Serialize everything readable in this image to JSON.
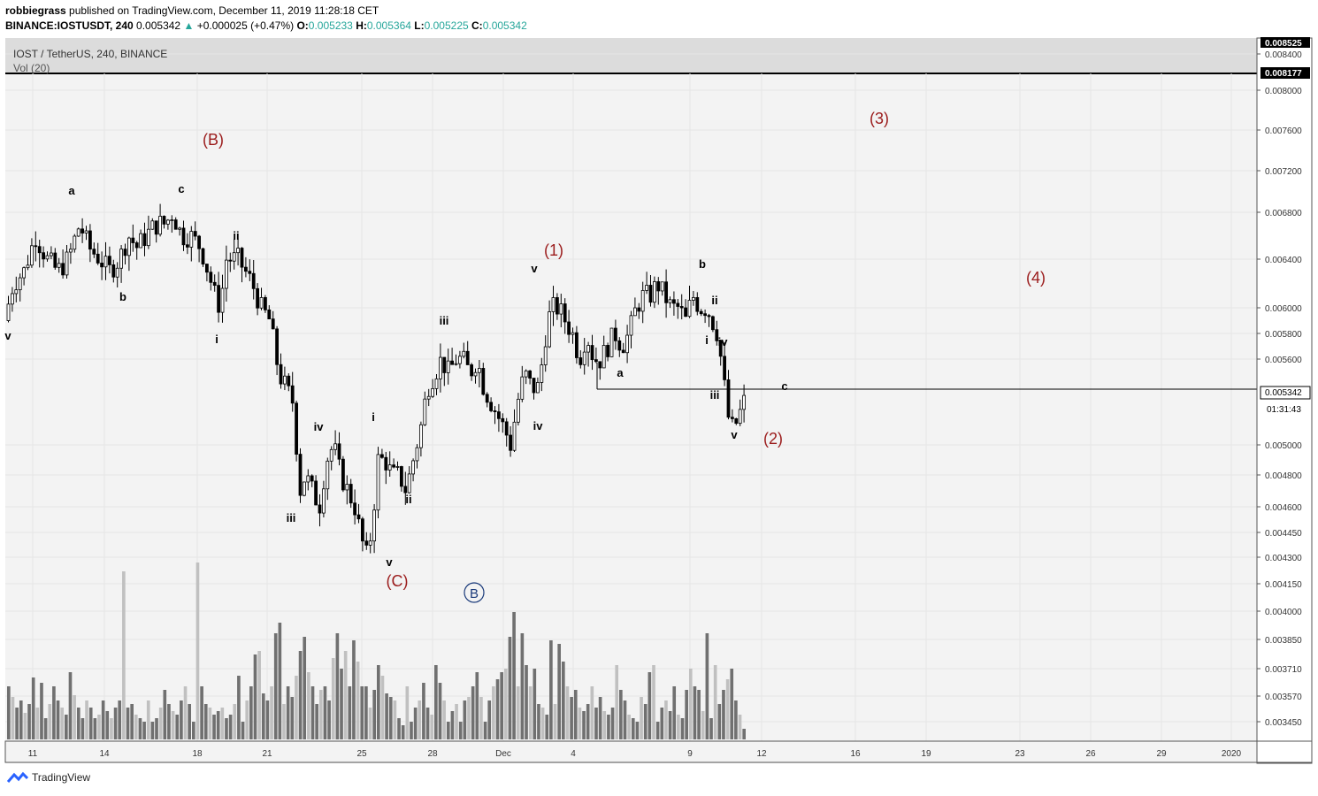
{
  "header": {
    "author": "robbiegrass",
    "published_text": "published on TradingView.com, December 11, 2019 11:28:18 CET",
    "symbol": "BINANCE:IOSTUSDT, 240",
    "last": "0.005342",
    "change_arrow": "▲",
    "change": "+0.000025 (+0.47%)",
    "o_label": "O:",
    "o_val": "0.005233",
    "h_label": "H:",
    "h_val": "0.005364",
    "l_label": "L:",
    "l_val": "0.005225",
    "c_label": "C:",
    "c_val": "0.005342"
  },
  "legend": {
    "title": "IOST / TetherUS, 240, BINANCE",
    "vol": "Vol (20)"
  },
  "price_axis": {
    "ticks": [
      "0.008400",
      "0.008000",
      "0.007600",
      "0.007200",
      "0.006800",
      "0.006400",
      "0.006000",
      "0.005800",
      "0.005600",
      "0.005000",
      "0.004800",
      "0.004600",
      "0.004450",
      "0.004300",
      "0.004150",
      "0.004000",
      "0.003850",
      "0.003710",
      "0.003570",
      "0.003450"
    ],
    "badge_top": "0.008525",
    "badge_second": "0.008177",
    "badge_last": "0.005342",
    "countdown": "01:31:43"
  },
  "time_axis": {
    "ticks": [
      "11",
      "14",
      "18",
      "21",
      "25",
      "28",
      "Dec",
      "4",
      "9",
      "12",
      "16",
      "19",
      "23",
      "26",
      "29",
      "2020"
    ]
  },
  "footer": {
    "brand": "TradingView"
  },
  "colors": {
    "wave_major": "#9b1c1c",
    "wave_minor": "#000000",
    "circle_B": "#1a3a7a",
    "volume_dark": "#707070",
    "volume_light": "#c0c0c0",
    "candle": "#000000",
    "plot_bg": "#f3f3f3",
    "band_bg": "#dcdcdc"
  },
  "annotations": {
    "major": [
      {
        "label": "(B)"
      },
      {
        "label": "(C)"
      },
      {
        "label": "(1)"
      },
      {
        "label": "(2)"
      },
      {
        "label": "(3)"
      },
      {
        "label": "(4)"
      }
    ],
    "circle": {
      "label": "B"
    },
    "minor": [
      {
        "label": "a"
      },
      {
        "label": "c"
      },
      {
        "label": "b"
      },
      {
        "label": "ii"
      },
      {
        "label": "i"
      },
      {
        "label": "iv"
      },
      {
        "label": "iii"
      },
      {
        "label": "i"
      },
      {
        "label": "ii"
      },
      {
        "label": "v"
      },
      {
        "label": "iii"
      },
      {
        "label": "v"
      },
      {
        "label": "iv"
      },
      {
        "label": "a"
      },
      {
        "label": "b"
      },
      {
        "label": "ii"
      },
      {
        "label": "i"
      },
      {
        "label": "iv"
      },
      {
        "label": "iii"
      },
      {
        "label": "v"
      },
      {
        "label": "c"
      },
      {
        "label": "v"
      }
    ]
  },
  "chart_data": {
    "type": "candlestick",
    "title": "IOST / TetherUS, 240, BINANCE",
    "x_range": [
      "Nov 10 2019",
      "Jan 1 2020"
    ],
    "y_range": [
      0.00335,
      0.0085
    ],
    "y_scale": "log",
    "grid": true,
    "horizontal_level": 0.005342,
    "price_path": [
      [
        0,
        0.0059
      ],
      [
        10,
        0.0062
      ],
      [
        22,
        0.0063
      ],
      [
        35,
        0.0066
      ],
      [
        48,
        0.0064
      ],
      [
        60,
        0.0063
      ],
      [
        72,
        0.0064
      ],
      [
        85,
        0.0067
      ],
      [
        95,
        0.0065
      ],
      [
        108,
        0.0064
      ],
      [
        118,
        0.0063
      ],
      [
        130,
        0.0064
      ],
      [
        140,
        0.0066
      ],
      [
        150,
        0.0065
      ],
      [
        160,
        0.0066
      ],
      [
        172,
        0.0067
      ],
      [
        182,
        0.0067
      ],
      [
        190,
        0.0068
      ],
      [
        200,
        0.0066
      ],
      [
        210,
        0.0066
      ],
      [
        222,
        0.0065
      ],
      [
        230,
        0.0063
      ],
      [
        238,
        0.0061
      ],
      [
        244,
        0.006
      ],
      [
        250,
        0.0064
      ],
      [
        256,
        0.0064
      ],
      [
        264,
        0.0064
      ],
      [
        272,
        0.0063
      ],
      [
        280,
        0.0062
      ],
      [
        290,
        0.006
      ],
      [
        300,
        0.0059
      ],
      [
        310,
        0.0055
      ],
      [
        318,
        0.0054
      ],
      [
        326,
        0.0053
      ],
      [
        334,
        0.0047
      ],
      [
        340,
        0.0048
      ],
      [
        348,
        0.0047
      ],
      [
        356,
        0.0046
      ],
      [
        364,
        0.0049
      ],
      [
        372,
        0.005
      ],
      [
        380,
        0.0048
      ],
      [
        388,
        0.0047
      ],
      [
        396,
        0.0046
      ],
      [
        404,
        0.0044
      ],
      [
        410,
        0.0043
      ],
      [
        416,
        0.0045
      ],
      [
        422,
        0.0049
      ],
      [
        430,
        0.0049
      ],
      [
        438,
        0.0048
      ],
      [
        446,
        0.0048
      ],
      [
        454,
        0.0047
      ],
      [
        462,
        0.0049
      ],
      [
        470,
        0.0051
      ],
      [
        478,
        0.0054
      ],
      [
        486,
        0.0055
      ],
      [
        494,
        0.0056
      ],
      [
        502,
        0.0055
      ],
      [
        510,
        0.0056
      ],
      [
        518,
        0.0056
      ],
      [
        526,
        0.0055
      ],
      [
        534,
        0.0056
      ],
      [
        542,
        0.0054
      ],
      [
        550,
        0.0053
      ],
      [
        558,
        0.0052
      ],
      [
        566,
        0.0051
      ],
      [
        572,
        0.005
      ],
      [
        580,
        0.0053
      ],
      [
        588,
        0.0055
      ],
      [
        596,
        0.0054
      ],
      [
        604,
        0.0054
      ],
      [
        612,
        0.0058
      ],
      [
        618,
        0.006
      ],
      [
        626,
        0.006
      ],
      [
        634,
        0.0059
      ],
      [
        642,
        0.0058
      ],
      [
        650,
        0.0056
      ],
      [
        658,
        0.0058
      ],
      [
        666,
        0.0056
      ],
      [
        674,
        0.0056
      ],
      [
        682,
        0.0057
      ],
      [
        690,
        0.0058
      ],
      [
        698,
        0.0057
      ],
      [
        706,
        0.0058
      ],
      [
        714,
        0.006
      ],
      [
        722,
        0.0061
      ],
      [
        730,
        0.0061
      ],
      [
        738,
        0.0062
      ],
      [
        746,
        0.0061
      ],
      [
        754,
        0.006
      ],
      [
        762,
        0.006
      ],
      [
        770,
        0.0059
      ],
      [
        778,
        0.0061
      ],
      [
        786,
        0.006
      ],
      [
        794,
        0.006
      ],
      [
        800,
        0.0059
      ],
      [
        806,
        0.0058
      ],
      [
        812,
        0.0055
      ],
      [
        818,
        0.0052
      ],
      [
        824,
        0.0051
      ],
      [
        830,
        0.0052
      ],
      [
        836,
        0.0053
      ],
      [
        842,
        0.0053
      ]
    ],
    "volume": {
      "values": [
        0.3,
        0.24,
        0.18,
        0.22,
        0.15,
        0.2,
        0.35,
        0.18,
        0.32,
        0.12,
        0.2,
        0.3,
        0.22,
        0.18,
        0.14,
        0.38,
        0.25,
        0.18,
        0.12,
        0.22,
        0.18,
        0.12,
        0.14,
        0.22,
        0.16,
        0.12,
        0.18,
        0.22,
        0.95,
        0.18,
        0.2,
        0.14,
        0.12,
        0.1,
        0.22,
        0.1,
        0.12,
        0.18,
        0.28,
        0.2,
        0.16,
        0.14,
        0.22,
        0.3,
        0.2,
        0.1,
        1.0,
        0.3,
        0.2,
        0.18,
        0.14,
        0.16,
        0.18,
        0.12,
        0.14,
        0.2,
        0.36,
        0.1,
        0.22,
        0.3,
        0.48,
        0.5,
        0.26,
        0.22,
        0.3,
        0.6,
        0.66,
        0.2,
        0.3,
        0.24,
        0.36,
        0.5,
        0.58,
        0.38,
        0.3,
        0.2,
        0.28,
        0.3,
        0.22,
        0.46,
        0.6,
        0.4,
        0.5,
        0.3,
        0.56,
        0.44,
        0.3,
        0.3,
        0.18,
        0.28,
        0.42,
        0.36,
        0.26,
        0.24,
        0.22,
        0.12,
        0.08,
        0.3,
        0.1,
        0.18,
        0.22,
        0.32,
        0.18,
        0.14,
        0.42,
        0.32,
        0.22,
        0.1,
        0.16,
        0.2,
        0.1,
        0.22,
        0.24,
        0.3,
        0.38,
        0.24,
        0.1,
        0.22,
        0.3,
        0.34,
        0.38,
        0.4,
        0.58,
        0.72,
        0.3,
        0.6,
        0.42,
        0.3,
        0.4,
        0.2,
        0.18,
        0.14,
        0.56,
        0.2,
        0.54,
        0.44,
        0.3,
        0.24,
        0.28,
        0.18,
        0.16,
        0.2,
        0.3,
        0.18,
        0.24,
        0.16,
        0.14,
        0.18,
        0.42,
        0.28,
        0.22,
        0.14,
        0.12,
        0.1,
        0.24,
        0.2,
        0.38,
        0.42,
        0.1,
        0.18,
        0.22,
        0.16,
        0.3,
        0.14,
        0.12,
        0.28,
        0.4,
        0.3,
        0.28,
        0.16,
        0.6,
        0.12,
        0.42,
        0.2,
        0.28,
        0.34,
        0.4,
        0.22,
        0.14,
        0.06
      ]
    }
  }
}
